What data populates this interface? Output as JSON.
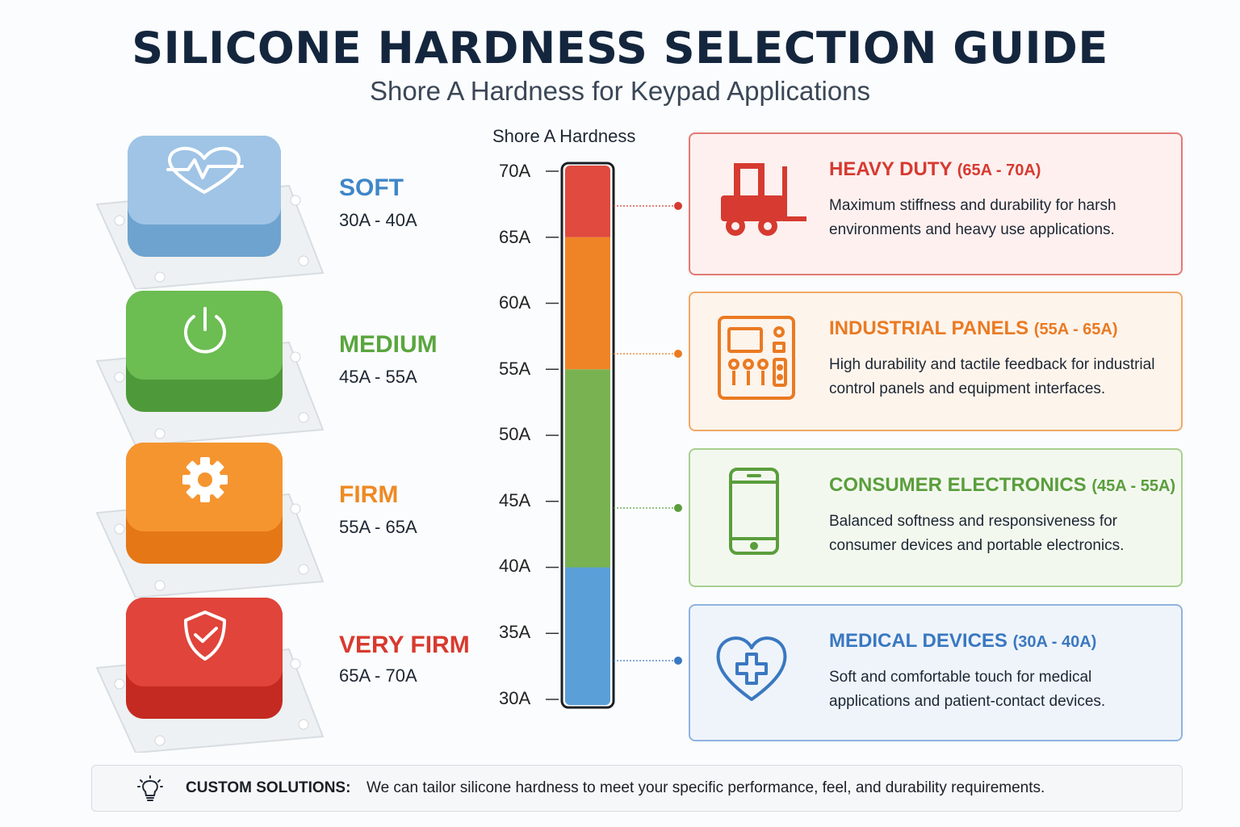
{
  "header": {
    "title": "SILICONE HARDNESS SELECTION GUIDE",
    "subtitle": "Shore A Hardness for Keypad Applications"
  },
  "levels": [
    {
      "name": "SOFT",
      "range": "30A - 40A",
      "color": "#3f86c8",
      "icon": "heart-pulse-icon"
    },
    {
      "name": "MEDIUM",
      "range": "45A - 55A",
      "color": "#5aa63f",
      "icon": "power-icon"
    },
    {
      "name": "FIRM",
      "range": "55A - 65A",
      "color": "#ee8a24",
      "icon": "gear-icon"
    },
    {
      "name": "VERY FIRM",
      "range": "65A - 70A",
      "color": "#d83a2f",
      "icon": "shield-check-icon"
    }
  ],
  "scale": {
    "title": "Shore A Hardness",
    "ticks": [
      "70A",
      "65A",
      "60A",
      "55A",
      "50A",
      "45A",
      "40A",
      "35A",
      "30A"
    ],
    "bands": [
      {
        "from": 30,
        "to": 40,
        "color": "#5b9fd8"
      },
      {
        "from": 40,
        "to": 55,
        "color": "#79b351"
      },
      {
        "from": 55,
        "to": 65,
        "color": "#ef8427"
      },
      {
        "from": 65,
        "to": 70,
        "color": "#e04a3f"
      }
    ]
  },
  "applications": [
    {
      "title": "HEAVY DUTY",
      "range": "(65A - 70A)",
      "desc": "Maximum stiffness and durability for harsh environments and heavy use applications.",
      "color": "#d63a30",
      "bg": "#fdf0ef",
      "icon": "forklift-icon"
    },
    {
      "title": "INDUSTRIAL PANELS",
      "range": "(55A - 65A)",
      "desc": "High durability and tactile feedback for industrial control panels and equipment interfaces.",
      "color": "#ea7a22",
      "bg": "#fdf4ec",
      "icon": "control-panel-icon"
    },
    {
      "title": "CONSUMER ELECTRONICS",
      "range": "(45A - 55A)",
      "desc": "Balanced softness and responsiveness for consumer devices and portable electronics.",
      "color": "#5a9e3c",
      "bg": "#f3f8ef",
      "icon": "smartphone-icon"
    },
    {
      "title": "MEDICAL DEVICES",
      "range": "(30A - 40A)",
      "desc": "Soft and comfortable touch for medical applications and patient-contact devices.",
      "color": "#3a78c0",
      "bg": "#eff4fb",
      "icon": "heart-cross-icon"
    }
  ],
  "footer": {
    "label": "CUSTOM SOLUTIONS:",
    "text": "We can tailor silicone hardness to meet your specific performance, feel, and durability requirements.",
    "icon": "lightbulb-icon"
  }
}
